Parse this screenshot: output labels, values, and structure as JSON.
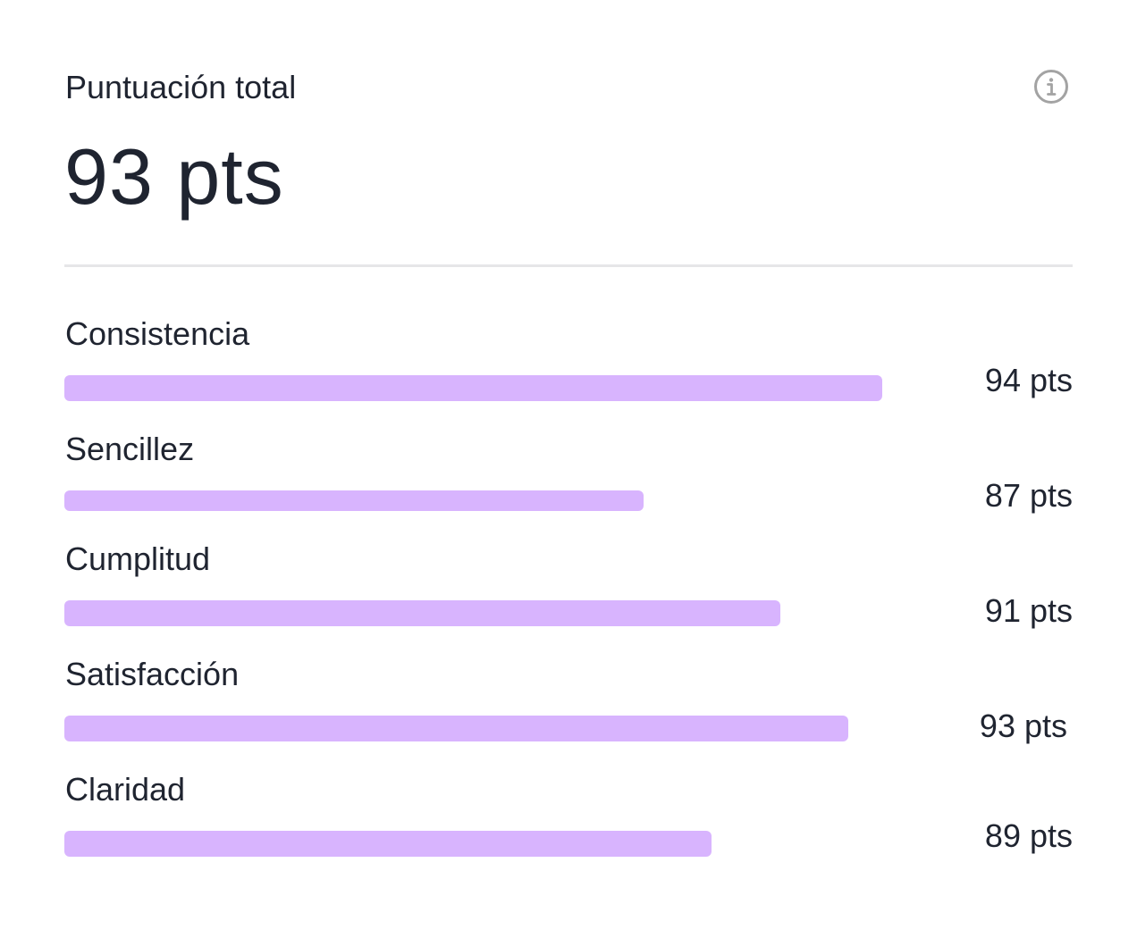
{
  "header": {
    "title": "Puntuación total",
    "total": "93 pts"
  },
  "colors": {
    "bar": "#d8b4fe",
    "text": "#1f2430",
    "divider": "#e6e6e8",
    "icon": "#a3a3a3"
  },
  "metrics": [
    {
      "label": "Consistencia",
      "value": "94 pts",
      "score": 94
    },
    {
      "label": "Sencillez",
      "value": "87 pts",
      "score": 87
    },
    {
      "label": "Cumplitud",
      "value": "91 pts",
      "score": 91
    },
    {
      "label": "Satisfacción",
      "value": "93 pts",
      "score": 93
    },
    {
      "label": "Claridad",
      "value": "89 pts",
      "score": 89
    }
  ]
}
